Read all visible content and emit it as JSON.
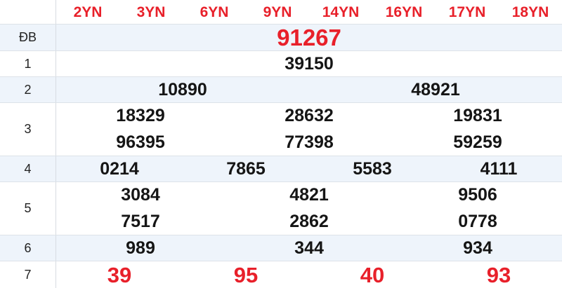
{
  "table": {
    "corner_label": "",
    "headers": [
      "2YN",
      "3YN",
      "6YN",
      "9YN",
      "14YN",
      "16YN",
      "17YN",
      "18YN"
    ],
    "rows": [
      {
        "label": "ĐB",
        "variant": "special",
        "lines": [
          [
            "91267"
          ]
        ]
      },
      {
        "label": "1",
        "variant": "normal",
        "lines": [
          [
            "39150"
          ]
        ]
      },
      {
        "label": "2",
        "variant": "normal",
        "lines": [
          [
            "10890",
            "48921"
          ]
        ]
      },
      {
        "label": "3",
        "variant": "normal",
        "lines": [
          [
            "18329",
            "28632",
            "19831"
          ],
          [
            "96395",
            "77398",
            "59259"
          ]
        ]
      },
      {
        "label": "4",
        "variant": "normal",
        "lines": [
          [
            "0214",
            "7865",
            "5583",
            "4111"
          ]
        ]
      },
      {
        "label": "5",
        "variant": "normal",
        "lines": [
          [
            "3084",
            "4821",
            "9506"
          ],
          [
            "7517",
            "2862",
            "0778"
          ]
        ]
      },
      {
        "label": "6",
        "variant": "normal",
        "lines": [
          [
            "989",
            "344",
            "934"
          ]
        ]
      },
      {
        "label": "7",
        "variant": "red",
        "lines": [
          [
            "39",
            "95",
            "40",
            "93"
          ]
        ]
      }
    ]
  },
  "colors": {
    "accent_red": "#e8202a",
    "row_shade": "#eef4fb",
    "border": "#dde2e8",
    "number_text": "#151515"
  }
}
